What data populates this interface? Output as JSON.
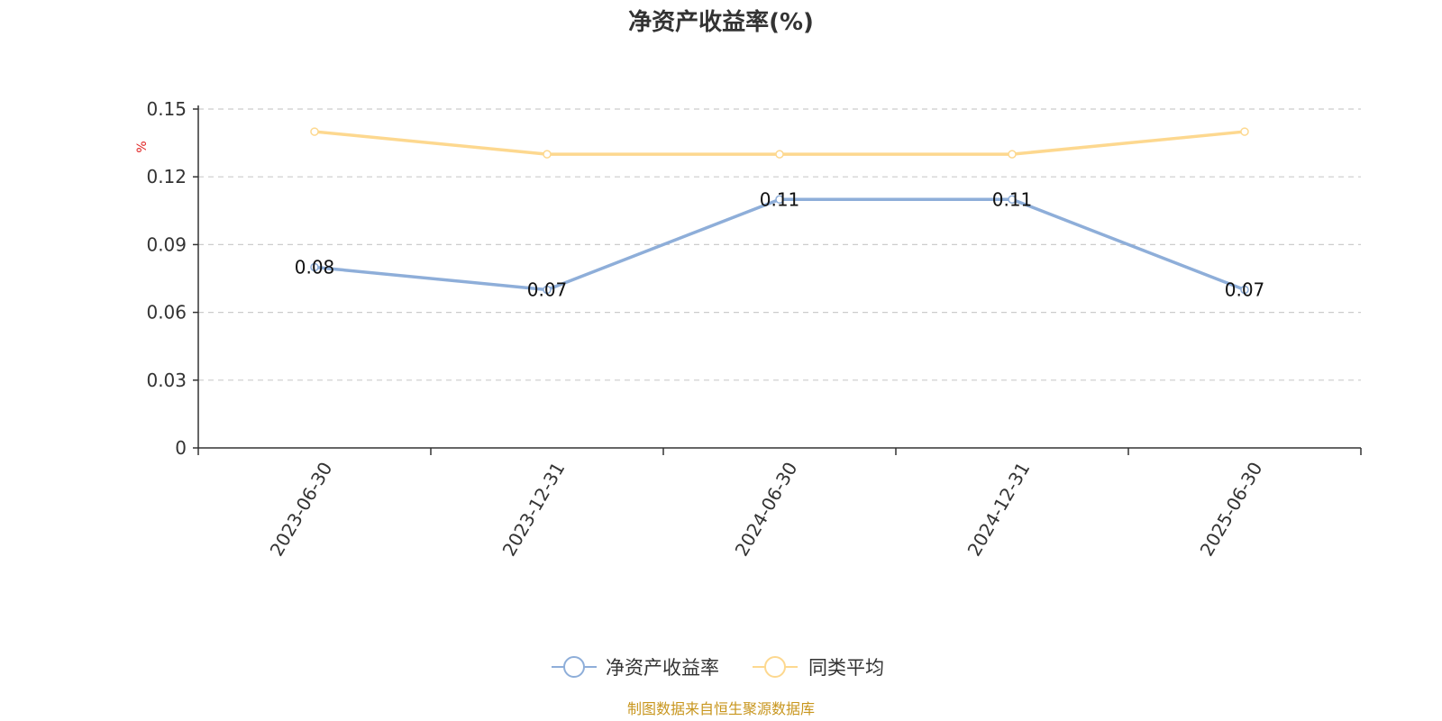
{
  "chart_data": {
    "type": "line",
    "title": "净资产收益率(%)",
    "ylabel": "%",
    "categories": [
      "2023-06-30",
      "2023-12-31",
      "2024-06-30",
      "2024-12-31",
      "2025-06-30"
    ],
    "ylim": [
      0,
      0.15
    ],
    "yticks": [
      "0",
      "0.03",
      "0.06",
      "0.09",
      "0.12",
      "0.15"
    ],
    "grid": true,
    "legend_position": "bottom",
    "series": [
      {
        "name": "净资产收益率",
        "values": [
          0.08,
          0.07,
          0.11,
          0.11,
          0.07
        ],
        "labels": [
          "0.08",
          "0.07",
          "0.11",
          "0.11",
          "0.07"
        ],
        "color": "#8eaed9"
      },
      {
        "name": "同类平均",
        "values": [
          0.14,
          0.13,
          0.13,
          0.13,
          0.14
        ],
        "color": "#fdd88f"
      }
    ]
  },
  "footer": {
    "source": "制图数据来自恒生聚源数据库"
  }
}
